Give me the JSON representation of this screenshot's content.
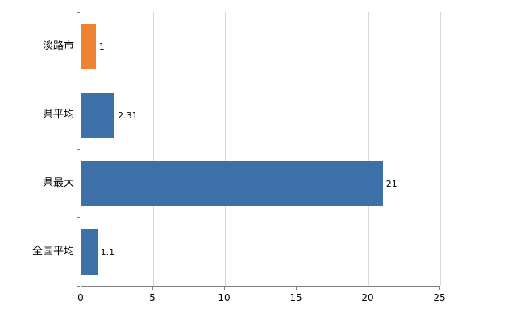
{
  "chart_data": {
    "type": "bar",
    "orientation": "horizontal",
    "title": "",
    "xlabel": "",
    "ylabel": "",
    "categories": [
      "淡路市",
      "県平均",
      "県最大",
      "全国平均"
    ],
    "values": [
      1,
      2.31,
      21,
      1.1
    ],
    "data_labels": [
      "1",
      "2.31",
      "21",
      "1.1"
    ],
    "bar_colors": [
      "#ee8433",
      "#3d6fa9",
      "#3d6fa9",
      "#3d6fa9"
    ],
    "xlim": [
      0,
      25
    ],
    "xticks": [
      0,
      5,
      10,
      15,
      20,
      25
    ],
    "grid": true,
    "legend": false
  },
  "colors": {
    "background": "#ffffff",
    "gridline": "#d9d9d9",
    "axis": "#808080",
    "text": "#000000"
  }
}
